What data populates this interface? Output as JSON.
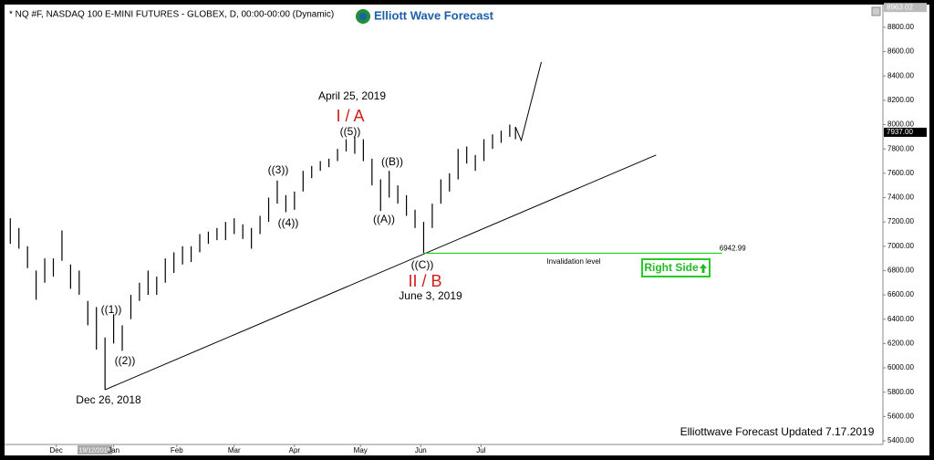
{
  "chart_data": {
    "type": "hilo",
    "title": "* NQ #F, NASDAQ 100 E-MINI FUTURES - GLOBEX, D, 00:00-00:00 (Dynamic)",
    "logo": "Elliott Wave Forecast",
    "footer": "Elliottwave Forecast Updated 7.17.2019",
    "cursor_label": "19/12/2018",
    "x": [
      2,
      5,
      8,
      11,
      14,
      17,
      20,
      23,
      26,
      29,
      32,
      35,
      38,
      41,
      44,
      47,
      50,
      53,
      56,
      59,
      62,
      65,
      68,
      71,
      74,
      77,
      80,
      83,
      86,
      89,
      92,
      95,
      98,
      101,
      104,
      107,
      110,
      113,
      116,
      119,
      122,
      125,
      128,
      131,
      134,
      137,
      140,
      143,
      146,
      149,
      152,
      155,
      158,
      161,
      164,
      167,
      170,
      173,
      176,
      178
    ],
    "high": [
      7230,
      7150,
      7000,
      6800,
      6900,
      6900,
      7130,
      6850,
      6800,
      6550,
      6500,
      6250,
      6440,
      6350,
      6600,
      6700,
      6800,
      6750,
      6900,
      6950,
      7000,
      7000,
      7100,
      7120,
      7150,
      7200,
      7230,
      7180,
      7150,
      7250,
      7400,
      7540,
      7420,
      7450,
      7620,
      7660,
      7700,
      7720,
      7800,
      7880,
      7900,
      7880,
      7720,
      7550,
      7620,
      7500,
      7420,
      7300,
      7200,
      7350,
      7550,
      7600,
      7800,
      7820,
      7750,
      7880,
      7920,
      7950,
      8000,
      7980
    ],
    "low": [
      7020,
      6980,
      6820,
      6560,
      6700,
      6750,
      6880,
      6650,
      6600,
      6350,
      6150,
      5820,
      6200,
      6140,
      6400,
      6550,
      6600,
      6600,
      6700,
      6780,
      6850,
      6870,
      6950,
      7020,
      7050,
      7050,
      7100,
      7060,
      6980,
      7100,
      7200,
      7350,
      7280,
      7300,
      7450,
      7560,
      7620,
      7650,
      7700,
      7780,
      7760,
      7700,
      7500,
      7290,
      7400,
      7350,
      7250,
      7150,
      6943,
      7150,
      7350,
      7450,
      7550,
      7680,
      7620,
      7700,
      7800,
      7850,
      7900,
      7880
    ],
    "color": "#000000",
    "trendline": {
      "x": [
        35,
        227
      ],
      "values": [
        5820,
        7750
      ]
    },
    "projection": {
      "x": [
        178,
        180,
        187
      ],
      "values": [
        7980,
        7870,
        8515
      ]
    },
    "invalidation": {
      "value": 6942.99,
      "label": "6942.99",
      "x": [
        146,
        250
      ],
      "text": "Invalidation level",
      "color": "#00cc00"
    },
    "right_side": "Right Side",
    "price_markers": [
      {
        "value": 7937,
        "label": "7937.00"
      },
      {
        "value": 8963.02,
        "label": "8963.02"
      }
    ],
    "xlim": [
      0,
      306
    ],
    "ylim": [
      5370,
      8987
    ],
    "xticks": [
      {
        "value": 18,
        "label": "Dec"
      },
      {
        "value": 38,
        "label": "Jan"
      },
      {
        "value": 60,
        "label": "Feb"
      },
      {
        "value": 80,
        "label": "Mar"
      },
      {
        "value": 101,
        "label": "Apr"
      },
      {
        "value": 124,
        "label": "May"
      },
      {
        "value": 145,
        "label": "Jun"
      },
      {
        "value": 166,
        "label": "Jul"
      }
    ],
    "yticks": [
      {
        "value": 5400,
        "label": "5400.00"
      },
      {
        "value": 5600,
        "label": "5600.00"
      },
      {
        "value": 5800,
        "label": "5800.00"
      },
      {
        "value": 6000,
        "label": "6000.00"
      },
      {
        "value": 6200,
        "label": "6200.00"
      },
      {
        "value": 6400,
        "label": "6400.00"
      },
      {
        "value": 6600,
        "label": "6600.00"
      },
      {
        "value": 6800,
        "label": "6800.00"
      },
      {
        "value": 7000,
        "label": "7000.00"
      },
      {
        "value": 7200,
        "label": "7200.00"
      },
      {
        "value": 7400,
        "label": "7400.00"
      },
      {
        "value": 7600,
        "label": "7600.00"
      },
      {
        "value": 7800,
        "label": "7800.00"
      },
      {
        "value": 8000,
        "label": "8000.00"
      },
      {
        "value": 8200,
        "label": "8200.00"
      },
      {
        "value": 8400,
        "label": "8400.00"
      },
      {
        "value": 8600,
        "label": "8600.00"
      },
      {
        "value": 8800,
        "label": "8800.00"
      }
    ],
    "annotations": [
      "April 25, 2019",
      "I / A",
      "((5))",
      "((3))",
      "((4))",
      "((B))",
      "((A))",
      "((C))",
      "II / B",
      "June 3, 2019",
      "((1))",
      "((2))",
      "Dec 26, 2018"
    ]
  }
}
